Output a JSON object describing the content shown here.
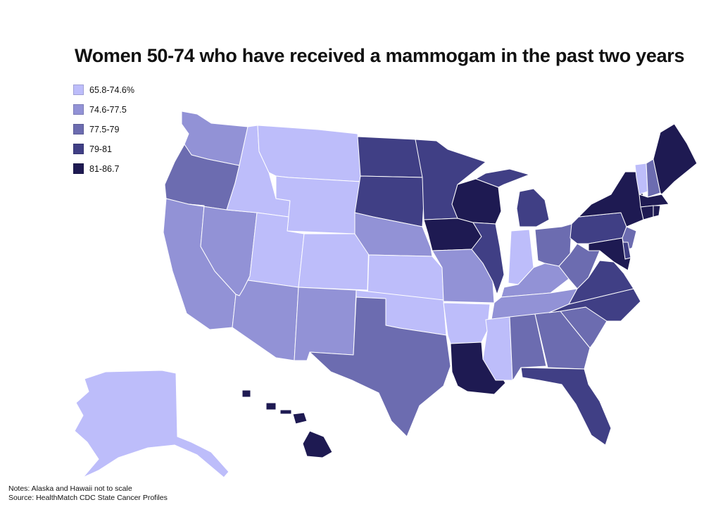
{
  "title": "Women 50-74 who have received a mammogam in the past two years",
  "legend": [
    {
      "label": "65.8-74.6%",
      "color": "#bdbdfa"
    },
    {
      "label": "74.6-77.5",
      "color": "#9292d6"
    },
    {
      "label": "77.5-79",
      "color": "#6c6cb0"
    },
    {
      "label": "79-81",
      "color": "#403f85"
    },
    {
      "label": "81-86.7",
      "color": "#1e1a52"
    }
  ],
  "notes": {
    "line1": "Notes: Alaska and Hawaii not to scale",
    "line2": "Source: HealthMatch CDC State Cancer Profiles"
  },
  "state_classes": {
    "WA": 1,
    "OR": 2,
    "CA": 1,
    "NV": 1,
    "ID": 0,
    "MT": 0,
    "WY": 0,
    "UT": 0,
    "CO": 0,
    "AZ": 1,
    "NM": 1,
    "ND": 3,
    "SD": 3,
    "NE": 1,
    "KS": 0,
    "OK": 0,
    "TX": 2,
    "MN": 3,
    "IA": 4,
    "MO": 1,
    "AR": 0,
    "LA": 4,
    "WI": 4,
    "IL": 3,
    "MI": 3,
    "IN": 0,
    "OH": 2,
    "KY": 1,
    "TN": 1,
    "MS": 0,
    "AL": 2,
    "GA": 2,
    "FL": 3,
    "SC": 2,
    "NC": 3,
    "VA": 3,
    "WV": 2,
    "PA": 3,
    "NY": 4,
    "VT": 0,
    "NH": 2,
    "ME": 4,
    "MA": 4,
    "CT": 4,
    "RI": 4,
    "NJ": 2,
    "DE": 3,
    "MD": 4,
    "AK": 0,
    "HI": 4
  }
}
